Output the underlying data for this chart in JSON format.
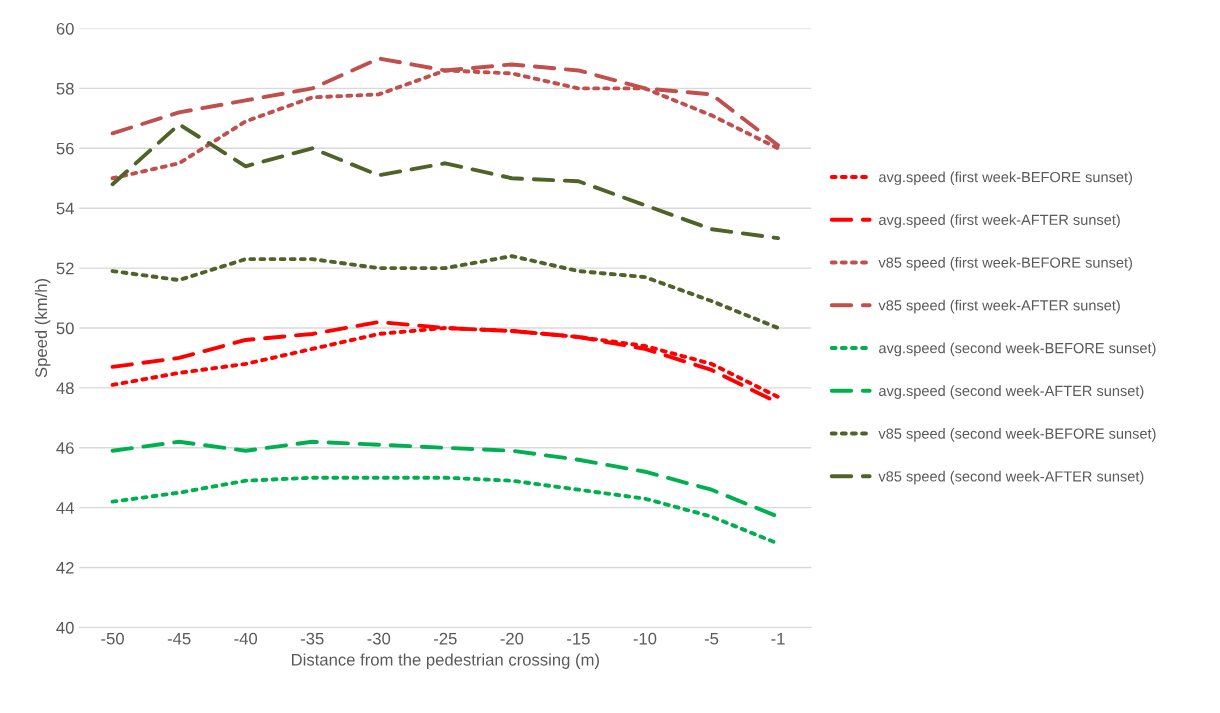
{
  "chart_data": {
    "type": "line",
    "xlabel": "Distance from the pedestrian crossing (m)",
    "ylabel": "Speed (km/h)",
    "categories": [
      "-50",
      "-45",
      "-40",
      "-35",
      "-30",
      "-25",
      "-20",
      "-15",
      "-10",
      "-5",
      "-1"
    ],
    "ylim": [
      40,
      60
    ],
    "yticks": [
      40,
      42,
      44,
      46,
      48,
      50,
      52,
      54,
      56,
      58,
      60
    ],
    "grid": "y",
    "legend": "right",
    "marker": "none",
    "series": [
      {
        "name": "avg.speed (first week-BEFORE sunset)",
        "color": "#ff0000",
        "line_style": "dotted",
        "values": [
          48.1,
          48.5,
          48.8,
          49.3,
          49.8,
          50.0,
          49.9,
          49.7,
          49.4,
          48.8,
          47.7
        ]
      },
      {
        "name": "avg.speed (first week-AFTER sunset)",
        "color": "#ff0000",
        "line_style": "dashed",
        "values": [
          48.7,
          49.0,
          49.6,
          49.8,
          50.2,
          50.0,
          49.9,
          49.7,
          49.3,
          48.6,
          47.5
        ]
      },
      {
        "name": "v85 speed (first week-BEFORE sunset)",
        "color": "#c0504d",
        "line_style": "dotted",
        "values": [
          55.0,
          55.5,
          56.9,
          57.7,
          57.8,
          58.6,
          58.5,
          58.0,
          58.0,
          57.1,
          56.0
        ]
      },
      {
        "name": "v85 speed (first week-AFTER sunset)",
        "color": "#c0504d",
        "line_style": "dashed",
        "values": [
          56.5,
          57.2,
          57.6,
          58.0,
          59.0,
          58.6,
          58.8,
          58.6,
          58.0,
          57.8,
          56.1
        ]
      },
      {
        "name": "avg.speed (second week-BEFORE sunset)",
        "color": "#00b050",
        "line_style": "dotted",
        "values": [
          44.2,
          44.5,
          44.9,
          45.0,
          45.0,
          45.0,
          44.9,
          44.6,
          44.3,
          43.7,
          42.8
        ]
      },
      {
        "name": "avg.speed (second week-AFTER sunset)",
        "color": "#00b050",
        "line_style": "dashed",
        "values": [
          45.9,
          46.2,
          45.9,
          46.2,
          46.1,
          46.0,
          45.9,
          45.6,
          45.2,
          44.6,
          43.7
        ]
      },
      {
        "name": "v85 speed (second week-BEFORE sunset)",
        "color": "#4f6228",
        "line_style": "dotted",
        "values": [
          51.9,
          51.6,
          52.3,
          52.3,
          52.0,
          52.0,
          52.4,
          51.9,
          51.7,
          50.9,
          50.0
        ]
      },
      {
        "name": "v85 speed (second week-AFTER sunset)",
        "color": "#4f6228",
        "line_style": "dashed",
        "values": [
          54.8,
          56.8,
          55.4,
          56.0,
          55.1,
          55.5,
          55.0,
          54.9,
          54.1,
          53.3,
          53.0
        ]
      }
    ]
  }
}
